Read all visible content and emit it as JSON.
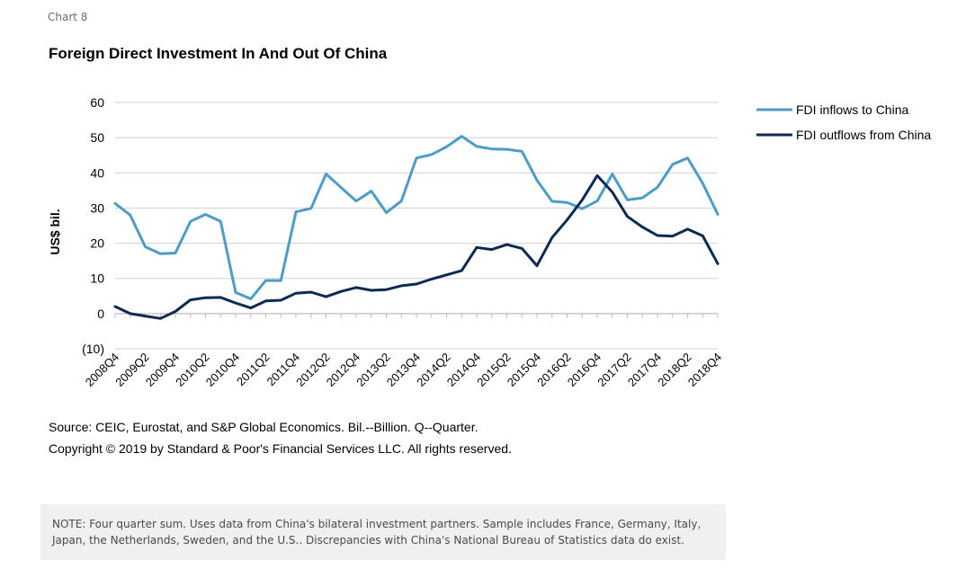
{
  "header": {
    "chart_number": "Chart 8",
    "title": "Foreign Direct Investment In And Out Of China"
  },
  "footer": {
    "source": "Source: CEIC, Eurostat, and S&P Global Economics. Bil.--Billion. Q--Quarter.",
    "copyright": "Copyright © 2019 by Standard & Poor's Financial Services LLC. All rights reserved.",
    "note": "NOTE: Four quarter sum. Uses data from China's bilateral investment partners. Sample includes France, Germany, Italy, Japan, the Netherlands, Sweden, and the U.S.. Discrepancies with China's National Bureau of Statistics data do exist."
  },
  "chart_data": {
    "type": "line",
    "title": "Foreign Direct Investment In And Out Of China",
    "ylabel": "US$ bil.",
    "xlabel": "",
    "ylim": [
      -10,
      60
    ],
    "yticks": [
      -10,
      0,
      10,
      20,
      30,
      40,
      50,
      60
    ],
    "ytick_labels": [
      "(10)",
      "0",
      "10",
      "20",
      "30",
      "40",
      "50",
      "60"
    ],
    "grid": true,
    "legend_position": "right",
    "x": [
      "2008Q4",
      "2009Q1",
      "2009Q2",
      "2009Q3",
      "2009Q4",
      "2010Q1",
      "2010Q2",
      "2010Q3",
      "2010Q4",
      "2011Q1",
      "2011Q2",
      "2011Q3",
      "2011Q4",
      "2012Q1",
      "2012Q2",
      "2012Q3",
      "2012Q4",
      "2013Q1",
      "2013Q2",
      "2013Q3",
      "2013Q4",
      "2014Q1",
      "2014Q2",
      "2014Q3",
      "2014Q4",
      "2015Q1",
      "2015Q2",
      "2015Q3",
      "2015Q4",
      "2016Q1",
      "2016Q2",
      "2016Q3",
      "2016Q4",
      "2017Q1",
      "2017Q2",
      "2017Q3",
      "2017Q4",
      "2018Q1",
      "2018Q2",
      "2018Q3",
      "2018Q4"
    ],
    "xtick_labels": [
      "2008Q4",
      "2009Q2",
      "2009Q4",
      "2010Q2",
      "2010Q4",
      "2011Q2",
      "2011Q4",
      "2012Q2",
      "2012Q4",
      "2013Q2",
      "2013Q4",
      "2014Q2",
      "2014Q4",
      "2015Q2",
      "2015Q4",
      "2016Q2",
      "2016Q4",
      "2017Q2",
      "2017Q4",
      "2018Q2",
      "2018Q4"
    ],
    "series": [
      {
        "name": "FDI inflows to China",
        "color": "#4d9cc7",
        "values": [
          31.3,
          28.0,
          19.0,
          17.0,
          17.2,
          26.2,
          28.2,
          26.2,
          6.0,
          4.2,
          9.4,
          9.4,
          28.9,
          29.9,
          39.7,
          35.8,
          32.0,
          34.8,
          28.7,
          32.0,
          44.2,
          45.2,
          47.4,
          50.4,
          47.5,
          46.8,
          46.7,
          46.1,
          37.9,
          31.9,
          31.6,
          29.8,
          32.0,
          39.7,
          32.3,
          32.9,
          35.9,
          42.4,
          44.2,
          37.0,
          28.2
        ]
      },
      {
        "name": "FDI outflows from China",
        "color": "#0d2a50",
        "values": [
          2.0,
          0.0,
          -0.7,
          -1.4,
          0.6,
          3.9,
          4.5,
          4.6,
          3.0,
          1.6,
          3.6,
          3.8,
          5.8,
          6.1,
          4.8,
          6.3,
          7.4,
          6.6,
          6.8,
          7.9,
          8.4,
          9.8,
          11.0,
          12.2,
          18.8,
          18.2,
          19.6,
          18.5,
          13.6,
          21.6,
          26.6,
          32.3,
          39.2,
          34.5,
          27.6,
          24.6,
          22.2,
          22.0,
          24.0,
          22.1,
          14.2
        ]
      }
    ]
  }
}
